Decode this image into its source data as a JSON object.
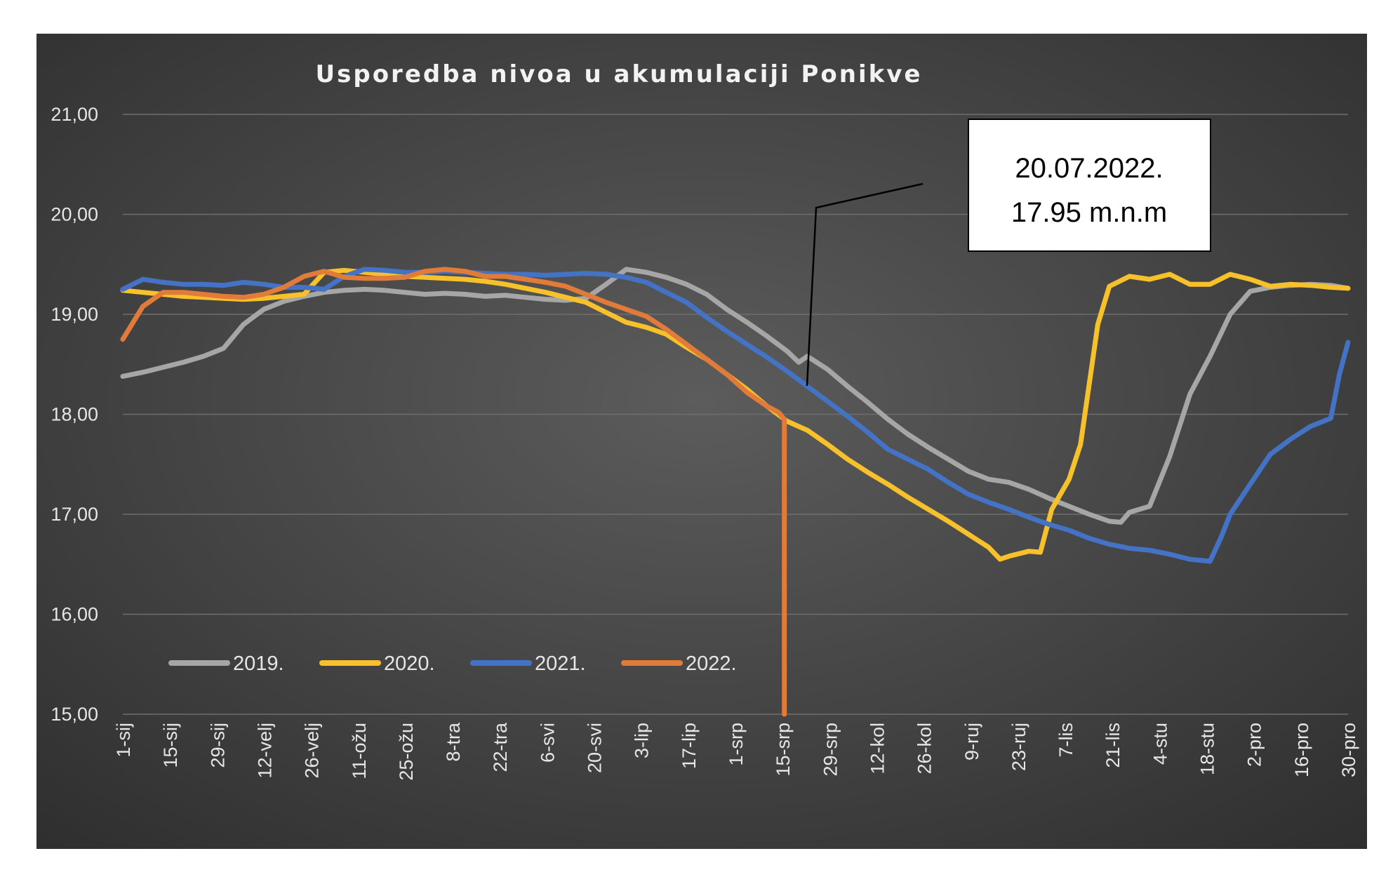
{
  "chart_data": {
    "type": "line",
    "title": "Usporedba nivoa u akumulaciji Ponikve",
    "xlabel": "",
    "ylabel": "",
    "ylim": [
      15,
      21
    ],
    "yticks": [
      "15,00",
      "16,00",
      "17,00",
      "18,00",
      "19,00",
      "20,00",
      "21,00"
    ],
    "categories": [
      "1-sij",
      "15-sij",
      "29-sij",
      "12-velj",
      "26-velj",
      "11-ožu",
      "25-ožu",
      "8-tra",
      "22-tra",
      "6-svi",
      "20-svi",
      "3-lip",
      "17-lip",
      "1-srp",
      "15-srp",
      "29-srp",
      "12-kol",
      "26-kol",
      "9-ruj",
      "23-ruj",
      "7-lis",
      "21-lis",
      "4-stu",
      "18-stu",
      "2-pro",
      "16-pro",
      "30-pro"
    ],
    "grid": true,
    "legend_position": "bottom-left",
    "series": [
      {
        "name": "2019.",
        "color": "#a6a6a6",
        "points": [
          [
            0,
            18.38
          ],
          [
            7,
            18.42
          ],
          [
            14,
            18.47
          ],
          [
            21,
            18.52
          ],
          [
            28,
            18.58
          ],
          [
            35,
            18.66
          ],
          [
            42,
            18.9
          ],
          [
            49,
            19.05
          ],
          [
            56,
            19.13
          ],
          [
            63,
            19.18
          ],
          [
            70,
            19.22
          ],
          [
            77,
            19.24
          ],
          [
            84,
            19.25
          ],
          [
            91,
            19.24
          ],
          [
            98,
            19.22
          ],
          [
            105,
            19.2
          ],
          [
            112,
            19.21
          ],
          [
            119,
            19.2
          ],
          [
            126,
            19.18
          ],
          [
            133,
            19.19
          ],
          [
            140,
            19.17
          ],
          [
            147,
            19.15
          ],
          [
            154,
            19.14
          ],
          [
            161,
            19.16
          ],
          [
            168,
            19.3
          ],
          [
            175,
            19.45
          ],
          [
            182,
            19.42
          ],
          [
            189,
            19.37
          ],
          [
            196,
            19.3
          ],
          [
            203,
            19.2
          ],
          [
            210,
            19.05
          ],
          [
            217,
            18.92
          ],
          [
            224,
            18.78
          ],
          [
            231,
            18.63
          ],
          [
            235,
            18.52
          ],
          [
            238,
            18.58
          ],
          [
            245,
            18.45
          ],
          [
            252,
            18.28
          ],
          [
            259,
            18.12
          ],
          [
            266,
            17.95
          ],
          [
            273,
            17.8
          ],
          [
            280,
            17.67
          ],
          [
            287,
            17.55
          ],
          [
            294,
            17.43
          ],
          [
            301,
            17.35
          ],
          [
            308,
            17.32
          ],
          [
            315,
            17.25
          ],
          [
            322,
            17.16
          ],
          [
            329,
            17.08
          ],
          [
            336,
            17.0
          ],
          [
            343,
            16.93
          ],
          [
            347,
            16.92
          ],
          [
            350,
            17.02
          ],
          [
            357,
            17.08
          ],
          [
            364,
            17.58
          ],
          [
            371,
            18.2
          ],
          [
            378,
            18.58
          ],
          [
            385,
            19.0
          ],
          [
            392,
            19.23
          ],
          [
            399,
            19.27
          ],
          [
            406,
            19.29
          ],
          [
            413,
            19.3
          ],
          [
            420,
            19.29
          ],
          [
            426,
            19.26
          ]
        ]
      },
      {
        "name": "2020.",
        "color": "#f6c12a",
        "points": [
          [
            0,
            19.24
          ],
          [
            7,
            19.22
          ],
          [
            14,
            19.2
          ],
          [
            21,
            19.18
          ],
          [
            28,
            19.17
          ],
          [
            35,
            19.16
          ],
          [
            42,
            19.15
          ],
          [
            49,
            19.16
          ],
          [
            56,
            19.18
          ],
          [
            63,
            19.2
          ],
          [
            70,
            19.42
          ],
          [
            77,
            19.44
          ],
          [
            84,
            19.42
          ],
          [
            91,
            19.4
          ],
          [
            98,
            19.38
          ],
          [
            105,
            19.37
          ],
          [
            112,
            19.36
          ],
          [
            119,
            19.35
          ],
          [
            126,
            19.33
          ],
          [
            133,
            19.3
          ],
          [
            140,
            19.26
          ],
          [
            147,
            19.22
          ],
          [
            154,
            19.17
          ],
          [
            161,
            19.12
          ],
          [
            168,
            19.02
          ],
          [
            175,
            18.92
          ],
          [
            182,
            18.87
          ],
          [
            189,
            18.8
          ],
          [
            196,
            18.67
          ],
          [
            203,
            18.55
          ],
          [
            210,
            18.4
          ],
          [
            217,
            18.25
          ],
          [
            224,
            18.08
          ],
          [
            231,
            17.93
          ],
          [
            238,
            17.84
          ],
          [
            245,
            17.7
          ],
          [
            252,
            17.55
          ],
          [
            259,
            17.42
          ],
          [
            266,
            17.3
          ],
          [
            273,
            17.17
          ],
          [
            280,
            17.05
          ],
          [
            287,
            16.93
          ],
          [
            294,
            16.8
          ],
          [
            301,
            16.67
          ],
          [
            305,
            16.55
          ],
          [
            308,
            16.58
          ],
          [
            315,
            16.63
          ],
          [
            319,
            16.62
          ],
          [
            323,
            17.05
          ],
          [
            329,
            17.35
          ],
          [
            333,
            17.7
          ],
          [
            336,
            18.3
          ],
          [
            339,
            18.9
          ],
          [
            343,
            19.28
          ],
          [
            350,
            19.38
          ],
          [
            357,
            19.35
          ],
          [
            364,
            19.4
          ],
          [
            371,
            19.3
          ],
          [
            378,
            19.3
          ],
          [
            385,
            19.4
          ],
          [
            392,
            19.35
          ],
          [
            399,
            19.28
          ],
          [
            406,
            19.3
          ],
          [
            413,
            19.29
          ],
          [
            420,
            19.27
          ],
          [
            426,
            19.26
          ]
        ]
      },
      {
        "name": "2021.",
        "color": "#4472c4",
        "points": [
          [
            0,
            19.25
          ],
          [
            7,
            19.35
          ],
          [
            14,
            19.32
          ],
          [
            21,
            19.3
          ],
          [
            28,
            19.3
          ],
          [
            35,
            19.29
          ],
          [
            42,
            19.32
          ],
          [
            49,
            19.3
          ],
          [
            56,
            19.27
          ],
          [
            63,
            19.27
          ],
          [
            70,
            19.25
          ],
          [
            77,
            19.38
          ],
          [
            84,
            19.45
          ],
          [
            91,
            19.44
          ],
          [
            98,
            19.42
          ],
          [
            105,
            19.42
          ],
          [
            112,
            19.43
          ],
          [
            119,
            19.42
          ],
          [
            126,
            19.41
          ],
          [
            133,
            19.4
          ],
          [
            140,
            19.4
          ],
          [
            147,
            19.39
          ],
          [
            154,
            19.4
          ],
          [
            161,
            19.41
          ],
          [
            168,
            19.4
          ],
          [
            175,
            19.37
          ],
          [
            182,
            19.32
          ],
          [
            189,
            19.22
          ],
          [
            196,
            19.12
          ],
          [
            203,
            18.97
          ],
          [
            210,
            18.83
          ],
          [
            217,
            18.7
          ],
          [
            224,
            18.57
          ],
          [
            231,
            18.43
          ],
          [
            238,
            18.28
          ],
          [
            245,
            18.13
          ],
          [
            252,
            17.98
          ],
          [
            259,
            17.82
          ],
          [
            266,
            17.65
          ],
          [
            273,
            17.55
          ],
          [
            280,
            17.45
          ],
          [
            287,
            17.32
          ],
          [
            294,
            17.2
          ],
          [
            301,
            17.12
          ],
          [
            308,
            17.05
          ],
          [
            315,
            16.97
          ],
          [
            322,
            16.9
          ],
          [
            329,
            16.84
          ],
          [
            336,
            16.76
          ],
          [
            343,
            16.7
          ],
          [
            350,
            16.66
          ],
          [
            357,
            16.64
          ],
          [
            364,
            16.6
          ],
          [
            371,
            16.55
          ],
          [
            378,
            16.53
          ],
          [
            382,
            16.78
          ],
          [
            385,
            17.0
          ],
          [
            392,
            17.3
          ],
          [
            399,
            17.6
          ],
          [
            406,
            17.75
          ],
          [
            413,
            17.88
          ],
          [
            420,
            17.96
          ],
          [
            423,
            18.4
          ],
          [
            426,
            18.72
          ]
        ]
      },
      {
        "name": "2022.",
        "color": "#e07b39",
        "points": [
          [
            0,
            18.75
          ],
          [
            7,
            19.08
          ],
          [
            14,
            19.22
          ],
          [
            21,
            19.22
          ],
          [
            28,
            19.2
          ],
          [
            35,
            19.18
          ],
          [
            42,
            19.17
          ],
          [
            49,
            19.2
          ],
          [
            56,
            19.27
          ],
          [
            63,
            19.38
          ],
          [
            70,
            19.43
          ],
          [
            77,
            19.37
          ],
          [
            84,
            19.36
          ],
          [
            91,
            19.36
          ],
          [
            98,
            19.37
          ],
          [
            105,
            19.43
          ],
          [
            112,
            19.45
          ],
          [
            119,
            19.43
          ],
          [
            126,
            19.38
          ],
          [
            133,
            19.38
          ],
          [
            140,
            19.35
          ],
          [
            147,
            19.32
          ],
          [
            154,
            19.28
          ],
          [
            161,
            19.2
          ],
          [
            168,
            19.12
          ],
          [
            175,
            19.05
          ],
          [
            182,
            18.98
          ],
          [
            189,
            18.85
          ],
          [
            196,
            18.7
          ],
          [
            203,
            18.55
          ],
          [
            210,
            18.4
          ],
          [
            217,
            18.22
          ],
          [
            224,
            18.08
          ],
          [
            228,
            18.02
          ],
          [
            230,
            17.95
          ],
          [
            230,
            15.0
          ]
        ]
      }
    ]
  },
  "annotation": {
    "line1": "20.07.2022.",
    "line2": "17.95 m.n.m"
  }
}
